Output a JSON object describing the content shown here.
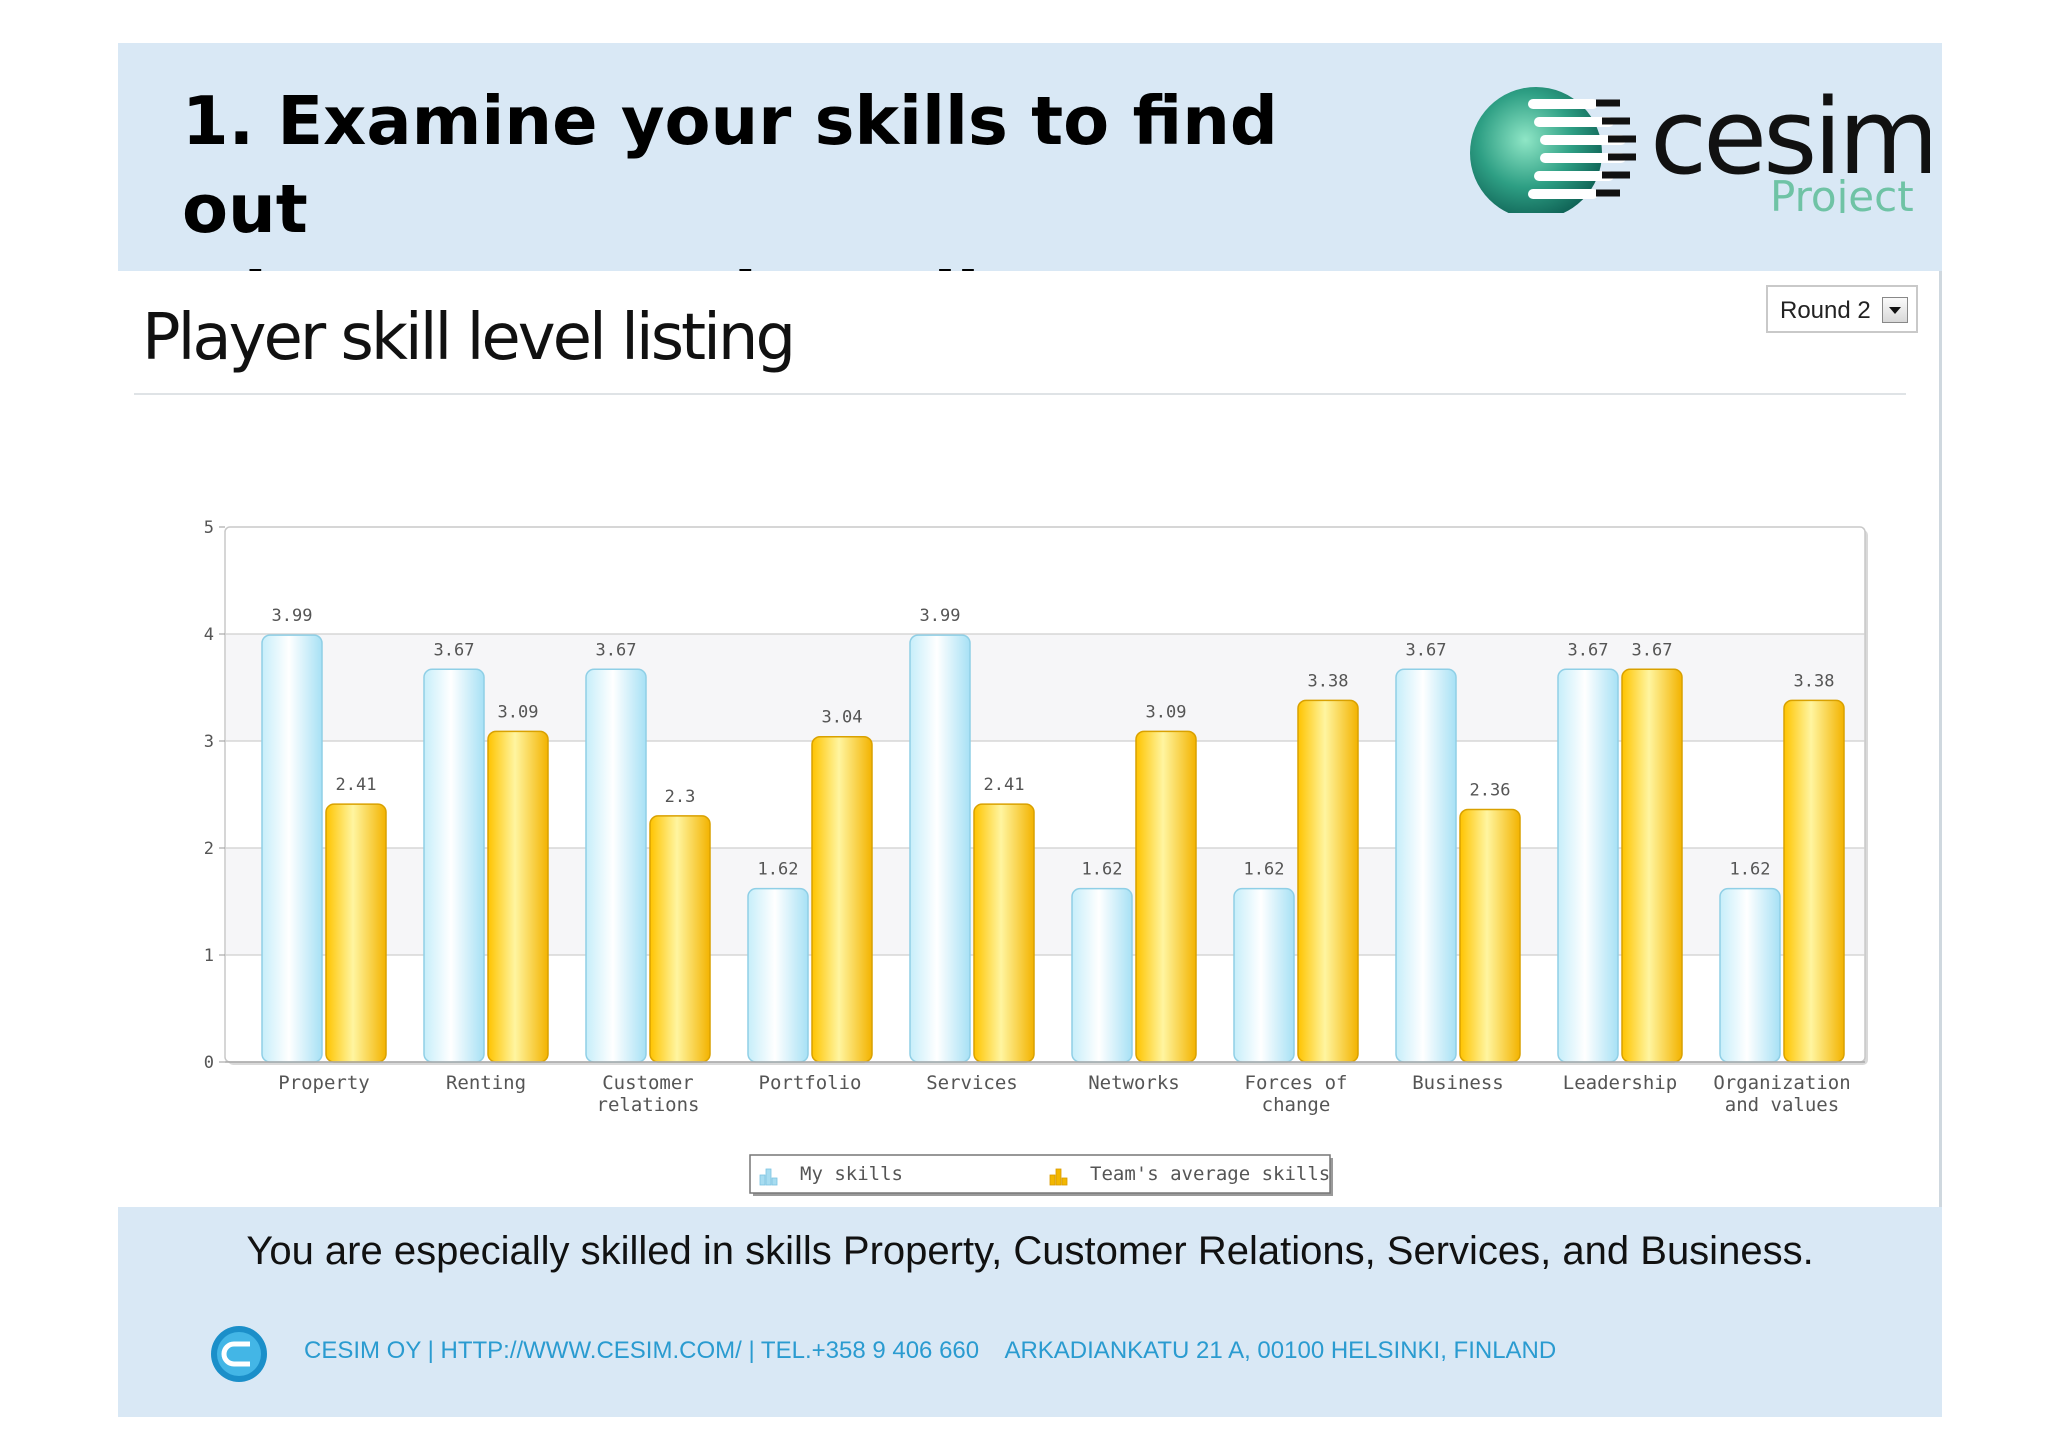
{
  "slide": {
    "title_line1": "1. Examine your skills to find out",
    "title_line2": "what you can do well",
    "summary": "You are especially skilled in skills Property, Customer Relations, Services, and Business.",
    "contact": "CESIM OY | HTTP://WWW.CESIM.COM/ | TEL.+358 9 406 660    ARKADIANKATU 21 A, 00100 HELSINKI, FINLAND"
  },
  "logo": {
    "brand": "cesim",
    "product": "Project",
    "color_dark": "#111111",
    "color_green": "#2e9f84",
    "color_text": "#6fc3a5"
  },
  "panel": {
    "title": "Player skill level listing",
    "round_select": "Round 2"
  },
  "colors": {
    "my_skills": "#bfeaf8",
    "team_avg": "#ffd21a",
    "band": "#d9e8f5",
    "contact": "#2a9bd0"
  },
  "chart_data": {
    "type": "bar",
    "title": "",
    "xlabel": "",
    "ylabel": "",
    "ylim": [
      0,
      5
    ],
    "yticks": [
      0,
      1,
      2,
      3,
      4,
      5
    ],
    "grid": true,
    "legend_position": "bottom-center",
    "categories": [
      "Property",
      "Renting",
      "Customer relations",
      "Portfolio",
      "Services",
      "Networks",
      "Forces of change",
      "Business",
      "Leadership",
      "Organization and values"
    ],
    "category_lines": [
      [
        "Property"
      ],
      [
        "Renting"
      ],
      [
        "Customer",
        "relations"
      ],
      [
        "Portfolio"
      ],
      [
        "Services"
      ],
      [
        "Networks"
      ],
      [
        "Forces of",
        "change"
      ],
      [
        "Business"
      ],
      [
        "Leadership"
      ],
      [
        "Organization",
        "and values"
      ]
    ],
    "series": [
      {
        "name": "My skills",
        "values": [
          3.99,
          3.67,
          3.67,
          1.62,
          3.99,
          1.62,
          1.62,
          3.67,
          3.67,
          1.62
        ]
      },
      {
        "name": "Team's average skills",
        "values": [
          2.41,
          3.09,
          2.3,
          3.04,
          2.41,
          3.09,
          3.38,
          2.36,
          3.67,
          3.38
        ]
      }
    ]
  }
}
